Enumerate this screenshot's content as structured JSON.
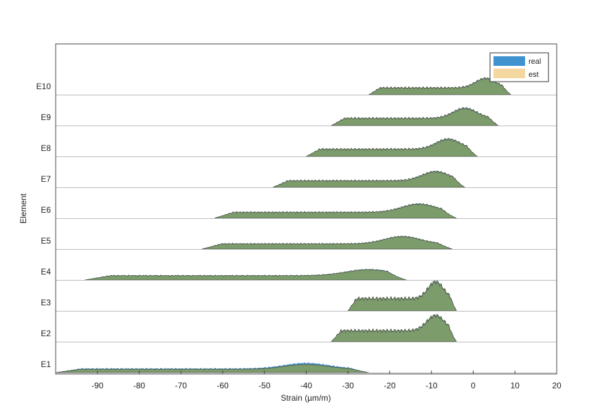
{
  "chart_data": {
    "type": "area",
    "subtype": "ridgeline",
    "title": "",
    "xlabel": "Strain (µm/m)",
    "ylabel": "Element",
    "xlim": [
      -100,
      20
    ],
    "xticks": [
      -90,
      -80,
      -70,
      -60,
      -50,
      -40,
      -30,
      -20,
      -10,
      0,
      10,
      20
    ],
    "grid": false,
    "legend": {
      "placement": "top-right",
      "entries": [
        "real",
        "est"
      ]
    },
    "colors": {
      "real": "#3f93cf",
      "est": "#f5d7a0",
      "overlap": "#7f9c68",
      "baseline": "#bbbbbb",
      "axis": "#444444"
    },
    "categories": [
      "E1",
      "E2",
      "E3",
      "E4",
      "E5",
      "E6",
      "E7",
      "E8",
      "E9",
      "E10"
    ],
    "series": [
      {
        "name": "E1",
        "support": [
          -100,
          -25
        ],
        "peak": -40,
        "real_peak": 0.3,
        "est_peak": 0.26
      },
      {
        "name": "E2",
        "support": [
          -34,
          -4
        ],
        "peak": -9,
        "real_peak": 0.83,
        "est_peak": 0.83
      },
      {
        "name": "E3",
        "support": [
          -30,
          -4
        ],
        "peak": -9,
        "real_peak": 0.92,
        "est_peak": 0.92
      },
      {
        "name": "E4",
        "support": [
          -93,
          -16
        ],
        "peak": -25,
        "real_peak": 0.33,
        "est_peak": 0.33
      },
      {
        "name": "E5",
        "support": [
          -65,
          -5
        ],
        "peak": -17,
        "real_peak": 0.4,
        "est_peak": 0.4
      },
      {
        "name": "E6",
        "support": [
          -62,
          -4
        ],
        "peak": -13,
        "real_peak": 0.45,
        "est_peak": 0.45
      },
      {
        "name": "E7",
        "support": [
          -48,
          -2
        ],
        "peak": -9,
        "real_peak": 0.5,
        "est_peak": 0.5
      },
      {
        "name": "E8",
        "support": [
          -40,
          1
        ],
        "peak": -6,
        "real_peak": 0.55,
        "est_peak": 0.55
      },
      {
        "name": "E9",
        "support": [
          -34,
          6
        ],
        "peak": -2,
        "real_peak": 0.55,
        "est_peak": 0.55
      },
      {
        "name": "E10",
        "support": [
          -25,
          9
        ],
        "peak": 3,
        "real_peak": 0.52,
        "est_peak": 0.52
      }
    ]
  }
}
